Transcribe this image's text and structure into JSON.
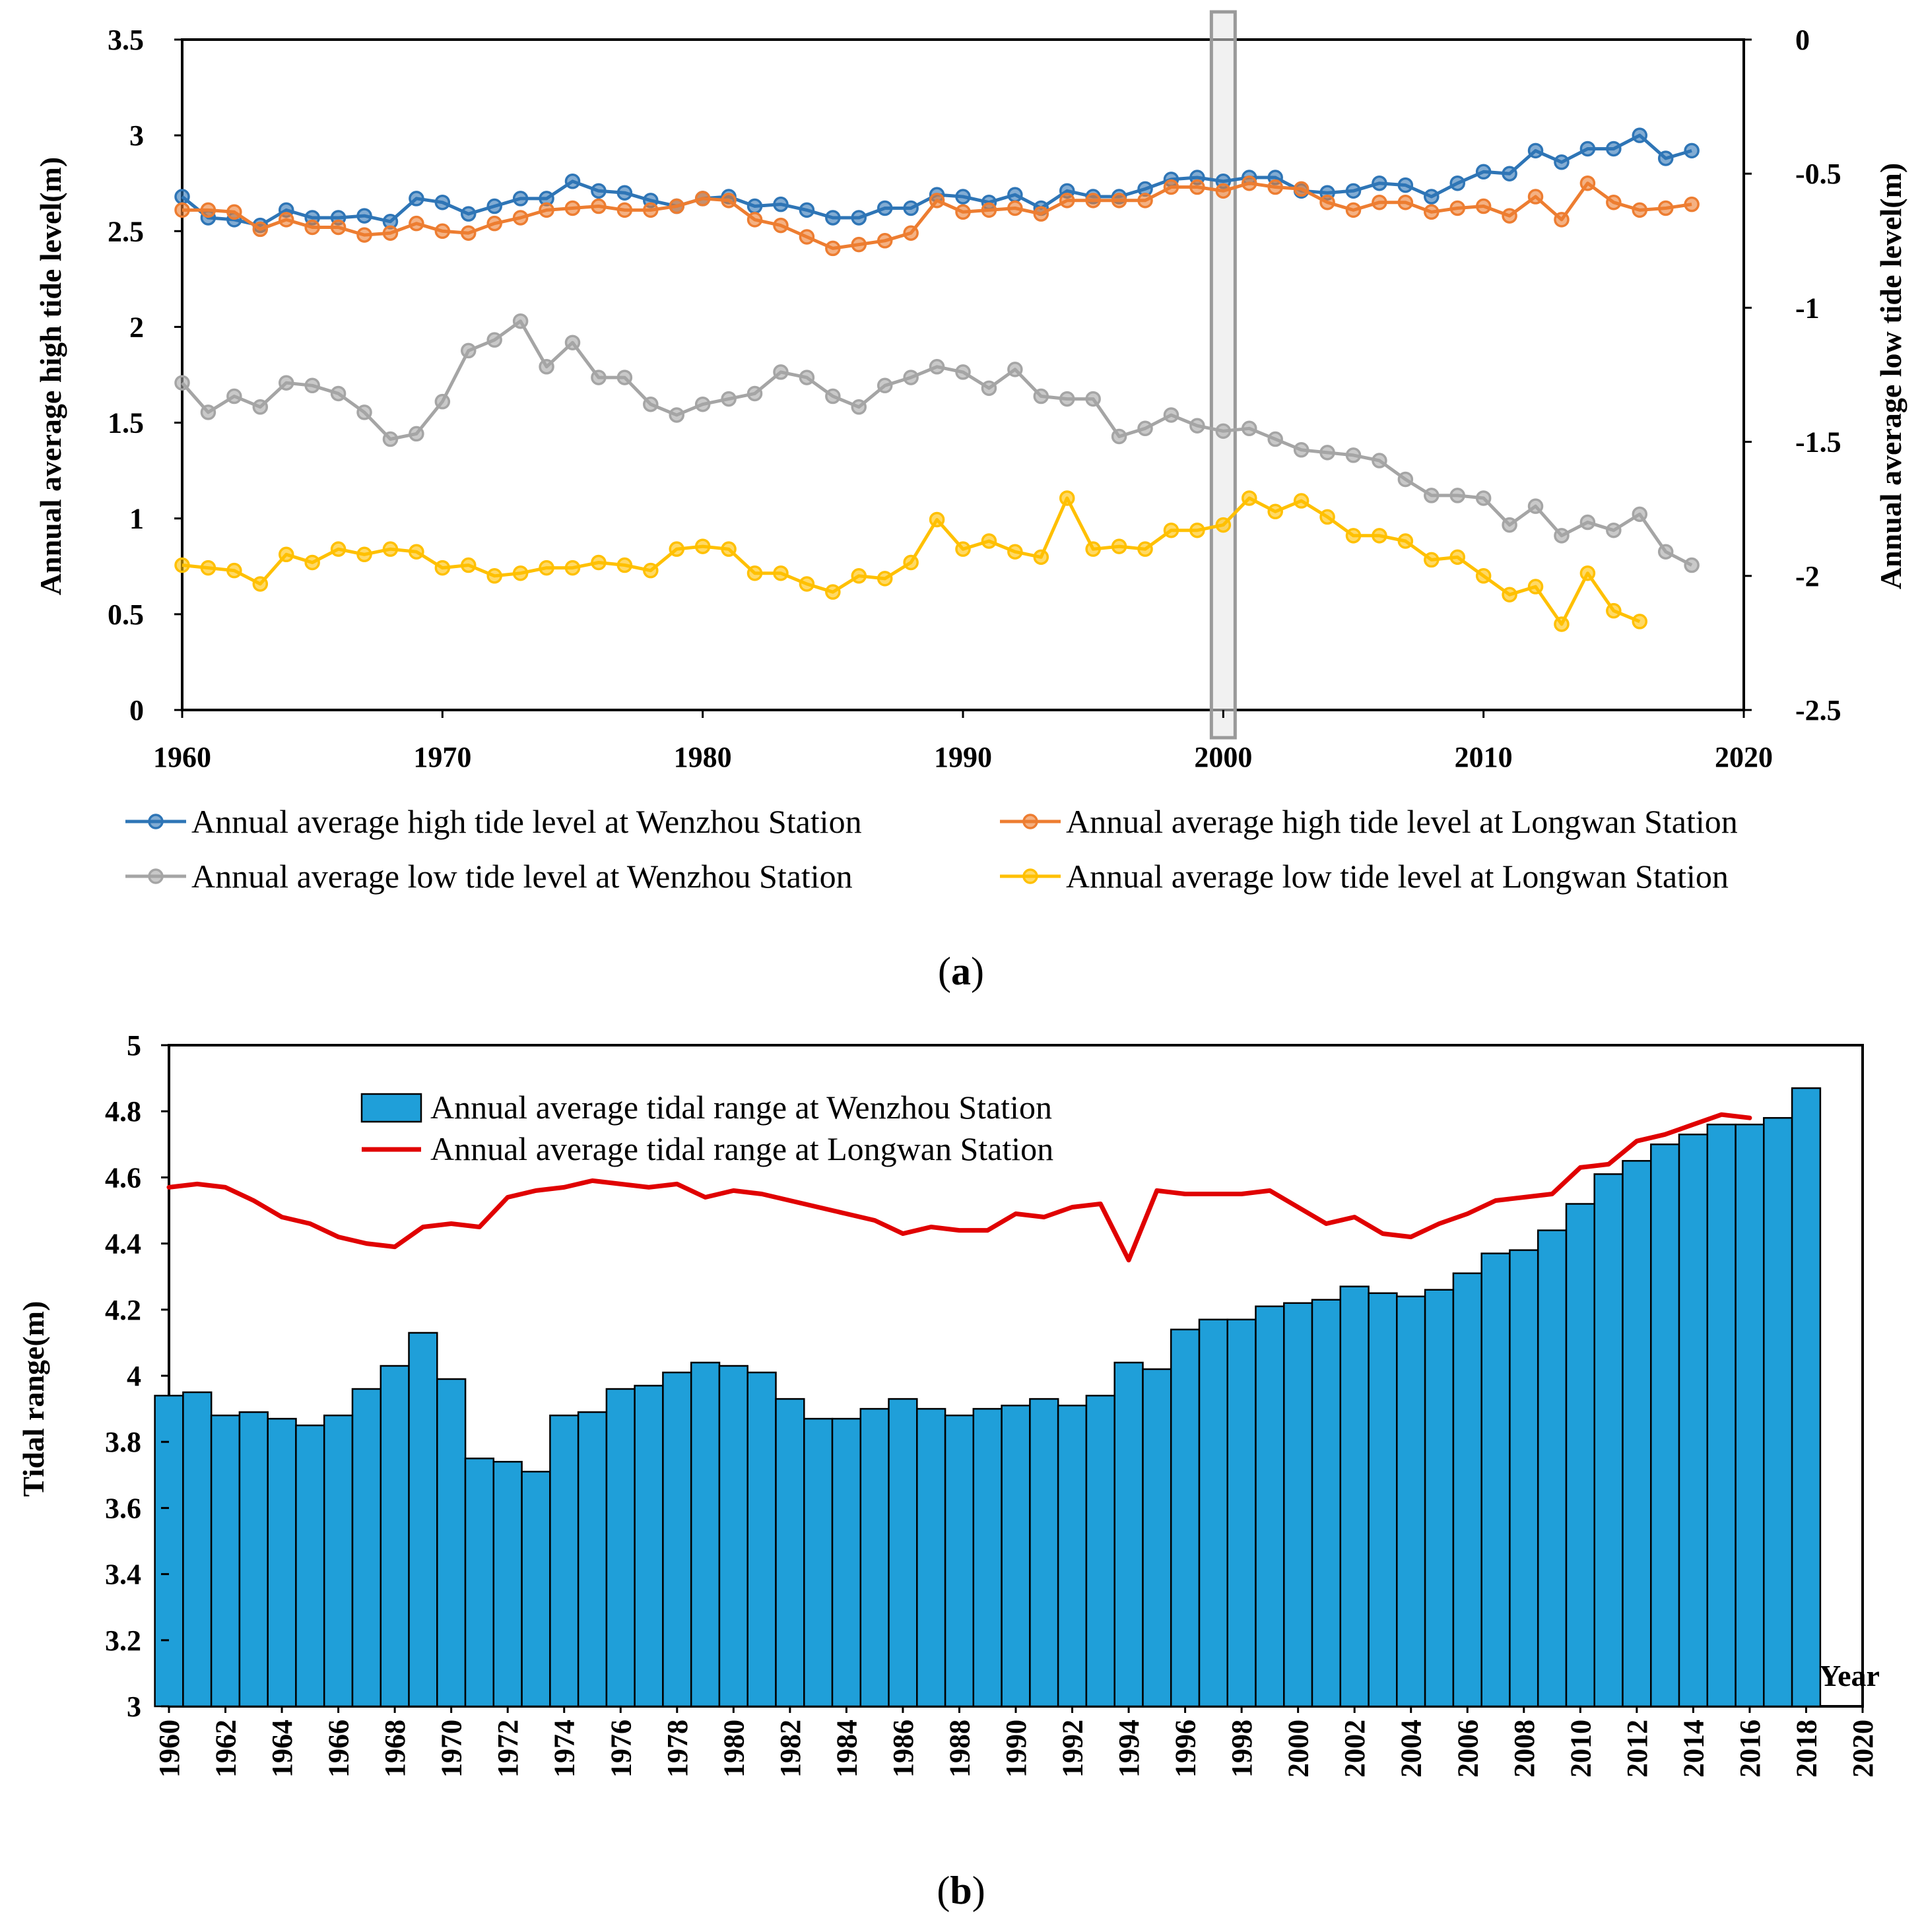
{
  "panels": [
    {
      "caption_open": "(",
      "caption_letter": "a",
      "caption_close": ")"
    },
    {
      "caption_open": "(",
      "caption_letter": "b",
      "caption_close": ")"
    }
  ],
  "chart_data": [
    {
      "type": "line",
      "title": "",
      "xlabel": "",
      "ylabel_left": "Annual  average high  tide level(m)",
      "ylabel_right": "Annual  average low  tide level(m)",
      "xlim": [
        1960,
        2020
      ],
      "xticks": [
        "1960",
        "1970",
        "1980",
        "1990",
        "2000",
        "2010",
        "2020"
      ],
      "ylim_left": [
        0,
        3.5
      ],
      "yticks_left": [
        "0",
        "0.5",
        "1",
        "1.5",
        "2",
        "2.5",
        "3",
        "3.5"
      ],
      "ylim_right": [
        -2.5,
        0
      ],
      "yticks_right": [
        "-2.5",
        "-2",
        "-1.5",
        "-1",
        "-0.5",
        "0"
      ],
      "highlight_year": 2000,
      "legend_position": "bottom",
      "series": [
        {
          "name": "Annual average high tide level at Wenzhou Station",
          "axis": "left",
          "color": "#2E75B6",
          "x": [
            1960,
            1961,
            1962,
            1963,
            1964,
            1965,
            1966,
            1967,
            1968,
            1969,
            1970,
            1971,
            1972,
            1973,
            1974,
            1975,
            1976,
            1977,
            1978,
            1979,
            1980,
            1981,
            1982,
            1983,
            1984,
            1985,
            1986,
            1987,
            1988,
            1989,
            1990,
            1991,
            1992,
            1993,
            1994,
            1995,
            1996,
            1997,
            1998,
            1999,
            2000,
            2001,
            2002,
            2003,
            2004,
            2005,
            2006,
            2007,
            2008,
            2009,
            2010,
            2011,
            2012,
            2013,
            2014,
            2015,
            2016,
            2017,
            2018
          ],
          "values": [
            2.68,
            2.57,
            2.56,
            2.53,
            2.61,
            2.57,
            2.57,
            2.58,
            2.55,
            2.67,
            2.65,
            2.59,
            2.63,
            2.67,
            2.67,
            2.76,
            2.71,
            2.7,
            2.66,
            2.63,
            2.67,
            2.68,
            2.63,
            2.64,
            2.61,
            2.57,
            2.57,
            2.62,
            2.62,
            2.69,
            2.68,
            2.65,
            2.69,
            2.62,
            2.71,
            2.68,
            2.68,
            2.72,
            2.77,
            2.78,
            2.76,
            2.78,
            2.78,
            2.71,
            2.7,
            2.71,
            2.75,
            2.74,
            2.68,
            2.75,
            2.81,
            2.8,
            2.92,
            2.86,
            2.93,
            2.93,
            3.0,
            2.88,
            2.92
          ]
        },
        {
          "name": "Annual average high tide level at Longwan Station",
          "axis": "left",
          "color": "#ED7D31",
          "x": [
            1960,
            1961,
            1962,
            1963,
            1964,
            1965,
            1966,
            1967,
            1968,
            1969,
            1970,
            1971,
            1972,
            1973,
            1974,
            1975,
            1976,
            1977,
            1978,
            1979,
            1980,
            1981,
            1982,
            1983,
            1984,
            1985,
            1986,
            1987,
            1988,
            1989,
            1990,
            1991,
            1992,
            1993,
            1994,
            1995,
            1996,
            1997,
            1998,
            1999,
            2000,
            2001,
            2002,
            2003,
            2004,
            2005,
            2006,
            2007,
            2008,
            2009,
            2010,
            2011,
            2012,
            2013,
            2014,
            2015,
            2016,
            2017,
            2018
          ],
          "values": [
            2.61,
            2.61,
            2.6,
            2.51,
            2.56,
            2.52,
            2.52,
            2.48,
            2.49,
            2.54,
            2.5,
            2.49,
            2.54,
            2.57,
            2.61,
            2.62,
            2.63,
            2.61,
            2.61,
            2.63,
            2.67,
            2.66,
            2.56,
            2.53,
            2.47,
            2.41,
            2.43,
            2.45,
            2.49,
            2.66,
            2.6,
            2.61,
            2.62,
            2.59,
            2.66,
            2.66,
            2.66,
            2.66,
            2.73,
            2.73,
            2.71,
            2.75,
            2.73,
            2.72,
            2.65,
            2.61,
            2.65,
            2.65,
            2.6,
            2.62,
            2.63,
            2.58,
            2.68,
            2.56,
            2.75,
            2.65,
            2.61,
            2.62,
            2.64
          ]
        },
        {
          "name": "Annual average low tide level at Wenzhou Station",
          "axis": "right",
          "color": "#A5A5A5",
          "x": [
            1960,
            1961,
            1962,
            1963,
            1964,
            1965,
            1966,
            1967,
            1968,
            1969,
            1970,
            1971,
            1972,
            1973,
            1974,
            1975,
            1976,
            1977,
            1978,
            1979,
            1980,
            1981,
            1982,
            1983,
            1984,
            1985,
            1986,
            1987,
            1988,
            1989,
            1990,
            1991,
            1992,
            1993,
            1994,
            1995,
            1996,
            1997,
            1998,
            1999,
            2000,
            2001,
            2002,
            2003,
            2004,
            2005,
            2006,
            2007,
            2008,
            2009,
            2010,
            2011,
            2012,
            2013,
            2014,
            2015,
            2016,
            2017,
            2018
          ],
          "values": [
            -1.28,
            -1.39,
            -1.33,
            -1.37,
            -1.28,
            -1.29,
            -1.32,
            -1.39,
            -1.49,
            -1.47,
            -1.35,
            -1.16,
            -1.12,
            -1.05,
            -1.22,
            -1.13,
            -1.26,
            -1.26,
            -1.36,
            -1.4,
            -1.36,
            -1.34,
            -1.32,
            -1.24,
            -1.26,
            -1.33,
            -1.37,
            -1.29,
            -1.26,
            -1.22,
            -1.24,
            -1.3,
            -1.23,
            -1.33,
            -1.34,
            -1.34,
            -1.48,
            -1.45,
            -1.4,
            -1.44,
            -1.46,
            -1.45,
            -1.49,
            -1.53,
            -1.54,
            -1.55,
            -1.57,
            -1.64,
            -1.7,
            -1.7,
            -1.71,
            -1.81,
            -1.74,
            -1.85,
            -1.8,
            -1.83,
            -1.77,
            -1.91,
            -1.96
          ]
        },
        {
          "name": "Annual average low tide level at Longwan Station",
          "axis": "right",
          "color": "#FFC000",
          "x": [
            1960,
            1961,
            1962,
            1963,
            1964,
            1965,
            1966,
            1967,
            1968,
            1969,
            1970,
            1971,
            1972,
            1973,
            1974,
            1975,
            1976,
            1977,
            1978,
            1979,
            1980,
            1981,
            1982,
            1983,
            1984,
            1985,
            1986,
            1987,
            1988,
            1989,
            1990,
            1991,
            1992,
            1993,
            1994,
            1995,
            1996,
            1997,
            1998,
            1999,
            2000,
            2001,
            2002,
            2003,
            2004,
            2005,
            2006,
            2007,
            2008,
            2009,
            2010,
            2011,
            2012,
            2013,
            2014,
            2015,
            2016
          ],
          "values": [
            -1.96,
            -1.97,
            -1.98,
            -2.03,
            -1.92,
            -1.95,
            -1.9,
            -1.92,
            -1.9,
            -1.91,
            -1.97,
            -1.96,
            -2.0,
            -1.99,
            -1.97,
            -1.97,
            -1.95,
            -1.96,
            -1.98,
            -1.9,
            -1.89,
            -1.9,
            -1.99,
            -1.99,
            -2.03,
            -2.06,
            -2.0,
            -2.01,
            -1.95,
            -1.79,
            -1.9,
            -1.87,
            -1.91,
            -1.93,
            -1.71,
            -1.9,
            -1.89,
            -1.9,
            -1.83,
            -1.83,
            -1.81,
            -1.71,
            -1.76,
            -1.72,
            -1.78,
            -1.85,
            -1.85,
            -1.87,
            -1.94,
            -1.93,
            -2.0,
            -2.07,
            -2.04,
            -2.18,
            -1.99,
            -2.13,
            -2.17
          ]
        }
      ]
    },
    {
      "type": "bar",
      "title": "",
      "xlabel": "Year",
      "ylabel": "Tidal  range(m)",
      "ylim": [
        3,
        5
      ],
      "yticks": [
        "3",
        "3.2",
        "3.4",
        "3.6",
        "3.8",
        "4",
        "4.2",
        "4.4",
        "4.6",
        "4.8",
        "5"
      ],
      "xticks": [
        "1960",
        "1962",
        "1964",
        "1966",
        "1968",
        "1970",
        "1972",
        "1974",
        "1976",
        "1978",
        "1980",
        "1982",
        "1984",
        "1986",
        "1988",
        "1990",
        "1992",
        "1994",
        "1996",
        "1998",
        "2000",
        "2002",
        "2004",
        "2006",
        "2008",
        "2010",
        "2012",
        "2014",
        "2016",
        "2018",
        "2020"
      ],
      "legend_position": "top-left",
      "categories": [
        1960,
        1961,
        1962,
        1963,
        1964,
        1965,
        1966,
        1967,
        1968,
        1969,
        1970,
        1971,
        1972,
        1973,
        1974,
        1975,
        1976,
        1977,
        1978,
        1979,
        1980,
        1981,
        1982,
        1983,
        1984,
        1985,
        1986,
        1987,
        1988,
        1989,
        1990,
        1991,
        1992,
        1993,
        1994,
        1995,
        1996,
        1997,
        1998,
        1999,
        2000,
        2001,
        2002,
        2003,
        2004,
        2005,
        2006,
        2007,
        2008,
        2009,
        2010,
        2011,
        2012,
        2013,
        2014,
        2015,
        2016,
        2017,
        2018
      ],
      "series": [
        {
          "name": "Annual average tidal range at Wenzhou Station",
          "kind": "bar",
          "color": "#1F9FD9",
          "values": [
            3.94,
            3.95,
            3.88,
            3.89,
            3.87,
            3.85,
            3.88,
            3.96,
            4.03,
            4.13,
            3.99,
            3.75,
            3.74,
            3.71,
            3.88,
            3.89,
            3.96,
            3.97,
            4.01,
            4.04,
            4.03,
            4.01,
            3.93,
            3.87,
            3.87,
            3.9,
            3.93,
            3.9,
            3.88,
            3.9,
            3.91,
            3.93,
            3.91,
            3.94,
            4.04,
            4.02,
            4.14,
            4.17,
            4.17,
            4.21,
            4.22,
            4.23,
            4.27,
            4.25,
            4.24,
            4.26,
            4.31,
            4.37,
            4.38,
            4.44,
            4.52,
            4.61,
            4.65,
            4.7,
            4.73,
            4.76,
            4.76,
            4.78,
            4.87
          ]
        },
        {
          "name": "Annual average tidal range at Longwan Station",
          "kind": "line",
          "color": "#E00000",
          "x": [
            1960,
            1961,
            1962,
            1963,
            1964,
            1965,
            1966,
            1967,
            1968,
            1969,
            1970,
            1971,
            1972,
            1973,
            1974,
            1975,
            1976,
            1977,
            1978,
            1979,
            1980,
            1981,
            1982,
            1983,
            1984,
            1985,
            1986,
            1987,
            1988,
            1989,
            1990,
            1991,
            1992,
            1993,
            1994,
            1995,
            1996,
            1997,
            1998,
            1999,
            2000,
            2001,
            2002,
            2003,
            2004,
            2005,
            2006,
            2007,
            2008,
            2009,
            2010,
            2011,
            2012,
            2013,
            2014,
            2015,
            2016
          ],
          "values": [
            4.57,
            4.58,
            4.57,
            4.53,
            4.48,
            4.46,
            4.42,
            4.4,
            4.39,
            4.45,
            4.46,
            4.45,
            4.54,
            4.56,
            4.57,
            4.59,
            4.58,
            4.57,
            4.58,
            4.54,
            4.56,
            4.55,
            4.53,
            4.51,
            4.49,
            4.47,
            4.43,
            4.45,
            4.44,
            4.44,
            4.49,
            4.48,
            4.51,
            4.52,
            4.35,
            4.56,
            4.55,
            4.55,
            4.55,
            4.56,
            4.51,
            4.46,
            4.48,
            4.43,
            4.42,
            4.46,
            4.49,
            4.53,
            4.54,
            4.55,
            4.63,
            4.64,
            4.71,
            4.73,
            4.76,
            4.79,
            4.78
          ]
        }
      ]
    }
  ]
}
